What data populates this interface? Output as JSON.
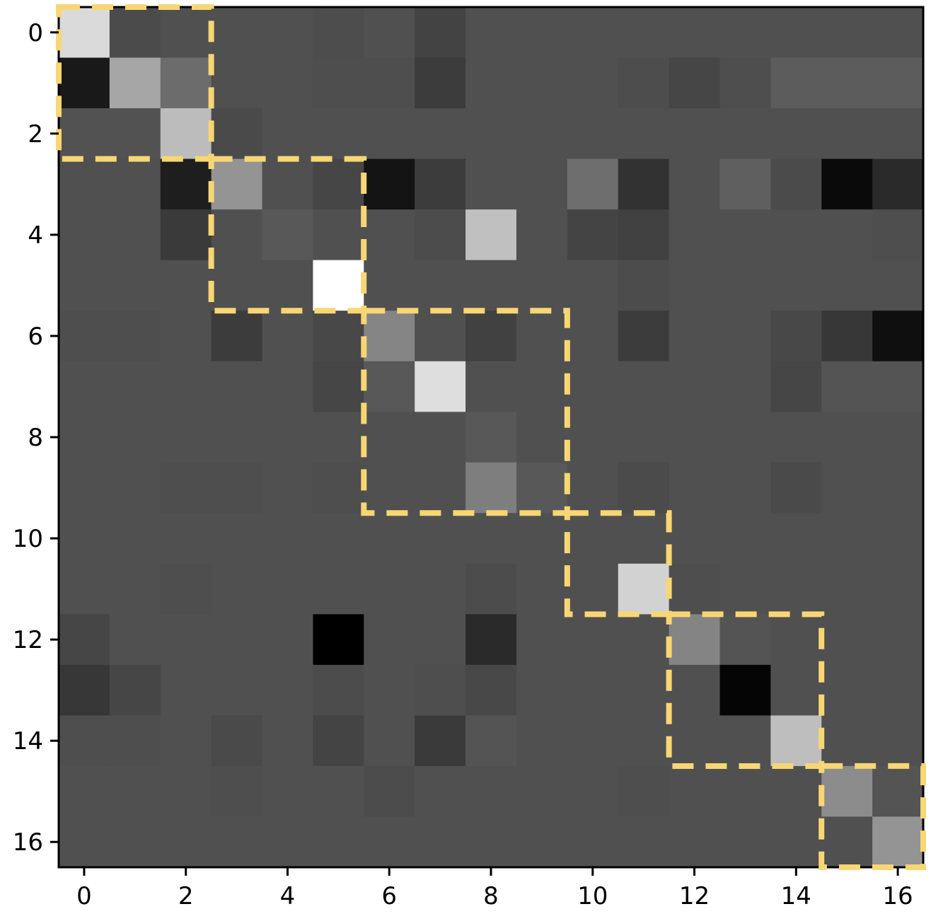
{
  "chart_data": {
    "type": "heatmap",
    "colormap": "gray",
    "rows": 17,
    "cols": 17,
    "xticks": [
      0,
      2,
      4,
      6,
      8,
      10,
      12,
      14,
      16
    ],
    "yticks": [
      0,
      2,
      4,
      6,
      8,
      10,
      12,
      14,
      16
    ],
    "xticklabels": [
      "0",
      "2",
      "4",
      "6",
      "8",
      "10",
      "12",
      "14",
      "16"
    ],
    "yticklabels": [
      "0",
      "2",
      "4",
      "6",
      "8",
      "10",
      "12",
      "14",
      "16"
    ],
    "values": [
      [
        218,
        75,
        80,
        80,
        80,
        77,
        80,
        67,
        80,
        80,
        80,
        80,
        80,
        80,
        80,
        80,
        80
      ],
      [
        25,
        166,
        108,
        80,
        80,
        78,
        78,
        60,
        80,
        80,
        80,
        77,
        70,
        78,
        92,
        92,
        92
      ],
      [
        82,
        82,
        188,
        74,
        80,
        80,
        80,
        80,
        80,
        80,
        80,
        80,
        80,
        80,
        80,
        80,
        80
      ],
      [
        80,
        80,
        30,
        148,
        80,
        70,
        20,
        60,
        80,
        80,
        110,
        50,
        80,
        95,
        75,
        10,
        42
      ],
      [
        80,
        80,
        58,
        80,
        88,
        80,
        80,
        76,
        192,
        80,
        68,
        65,
        80,
        80,
        80,
        80,
        78
      ],
      [
        80,
        80,
        80,
        80,
        80,
        255,
        80,
        80,
        80,
        80,
        80,
        76,
        80,
        80,
        80,
        80,
        80
      ],
      [
        78,
        78,
        80,
        60,
        80,
        72,
        133,
        80,
        65,
        80,
        80,
        60,
        80,
        80,
        72,
        55,
        15
      ],
      [
        80,
        80,
        80,
        80,
        80,
        70,
        88,
        222,
        80,
        80,
        80,
        80,
        80,
        80,
        70,
        84,
        84
      ],
      [
        80,
        80,
        80,
        80,
        80,
        80,
        80,
        80,
        88,
        80,
        80,
        80,
        80,
        80,
        80,
        80,
        80
      ],
      [
        80,
        80,
        78,
        78,
        80,
        78,
        80,
        80,
        126,
        88,
        80,
        75,
        80,
        80,
        74,
        80,
        80
      ],
      [
        80,
        80,
        80,
        80,
        80,
        80,
        80,
        80,
        80,
        80,
        80,
        80,
        80,
        80,
        80,
        80,
        80
      ],
      [
        80,
        80,
        78,
        80,
        80,
        80,
        80,
        80,
        76,
        80,
        80,
        210,
        78,
        80,
        80,
        80,
        80
      ],
      [
        70,
        80,
        80,
        80,
        80,
        0,
        80,
        80,
        42,
        80,
        80,
        80,
        132,
        84,
        80,
        80,
        80
      ],
      [
        55,
        70,
        80,
        80,
        80,
        76,
        80,
        78,
        72,
        80,
        80,
        80,
        80,
        5,
        80,
        80,
        80
      ],
      [
        78,
        78,
        80,
        74,
        80,
        68,
        80,
        58,
        84,
        80,
        80,
        80,
        80,
        80,
        190,
        80,
        80
      ],
      [
        80,
        80,
        80,
        78,
        80,
        80,
        76,
        80,
        80,
        80,
        80,
        78,
        80,
        80,
        80,
        140,
        84
      ],
      [
        80,
        80,
        80,
        80,
        80,
        80,
        80,
        80,
        80,
        80,
        80,
        80,
        80,
        80,
        80,
        80,
        148
      ]
    ],
    "annotations": [
      {
        "type": "dashed-box",
        "color": "#f8d673",
        "rows": [
          0,
          2
        ],
        "cols": [
          0,
          2
        ]
      },
      {
        "type": "dashed-box",
        "color": "#f8d673",
        "rows": [
          3,
          5
        ],
        "cols": [
          3,
          5
        ]
      },
      {
        "type": "dashed-box",
        "color": "#f8d673",
        "rows": [
          6,
          9
        ],
        "cols": [
          6,
          9
        ]
      },
      {
        "type": "dashed-box",
        "color": "#f8d673",
        "rows": [
          10,
          11
        ],
        "cols": [
          10,
          11
        ]
      },
      {
        "type": "dashed-box",
        "color": "#f8d673",
        "rows": [
          12,
          14
        ],
        "cols": [
          12,
          14
        ]
      },
      {
        "type": "dashed-box",
        "color": "#f8d673",
        "rows": [
          15,
          16
        ],
        "cols": [
          15,
          16
        ]
      }
    ]
  }
}
